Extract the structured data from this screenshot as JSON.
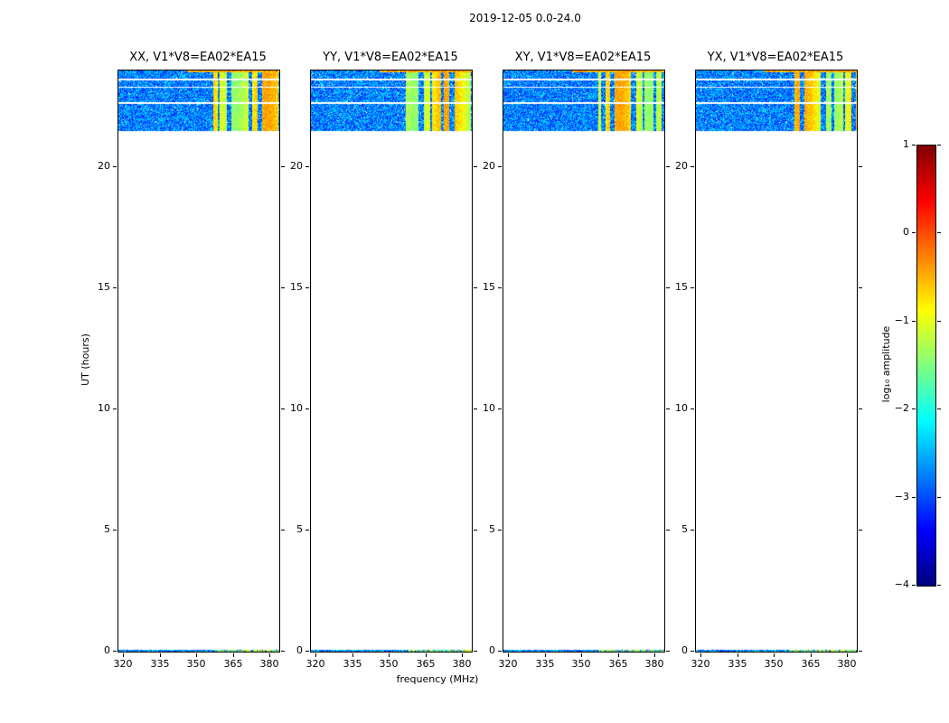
{
  "figure": {
    "title": "2019-12-05 0.0-24.0",
    "xlabel": "frequency (MHz)",
    "ylabel": "UT (hours)",
    "colorbar_label": "log₁₀ amplitude"
  },
  "colors": {
    "axes": "#000000",
    "background": "#ffffff"
  },
  "chart_data": {
    "type": "heatmap",
    "title": "2019-12-05 0.0-24.0",
    "xlabel": "frequency (MHz)",
    "ylabel": "UT (hours)",
    "colormap": "jet",
    "panels": [
      {
        "id": "xx",
        "title": "XX, V1*V8=EA02*EA15"
      },
      {
        "id": "yy",
        "title": "YY, V1*V8=EA02*EA15"
      },
      {
        "id": "xy",
        "title": "XY, V1*V8=EA02*EA15"
      },
      {
        "id": "yx",
        "title": "YX, V1*V8=EA02*EA15"
      }
    ],
    "x_range_mhz": [
      318,
      384
    ],
    "y_range_hours": [
      0,
      24
    ],
    "x_ticks": [
      320,
      335,
      350,
      365,
      380
    ],
    "y_ticks": [
      0,
      5,
      10,
      15,
      20
    ],
    "colorbar": {
      "label": "log₁₀ amplitude",
      "min": -4,
      "max": 1,
      "ticks": [
        {
          "value": 1,
          "label": "1"
        },
        {
          "value": 0,
          "label": "0"
        },
        {
          "value": -1,
          "label": "−1"
        },
        {
          "value": -2,
          "label": "−2"
        },
        {
          "value": -3,
          "label": "−3"
        },
        {
          "value": -4,
          "label": "−4"
        }
      ]
    },
    "top_edge": {
      "ut_range": [
        23.93,
        24.0
      ],
      "freq_range_mhz": [
        346,
        384
      ],
      "log_amp": [
        -0.9,
        0.0
      ]
    },
    "regions": [
      {
        "name": "observed-band",
        "ut_range": [
          21.5,
          24.0
        ],
        "background_log_amp": [
          -3.4,
          -2.1
        ],
        "rfi": {
          "freq_range_mhz": [
            357,
            384
          ],
          "log_amp": [
            -1.4,
            -0.25
          ],
          "pattern": "vertical-stripes"
        },
        "dropout_rows_ut": [
          [
            23.6,
            23.68
          ],
          [
            23.28,
            23.33
          ],
          [
            22.6,
            22.68
          ]
        ]
      },
      {
        "name": "bottom-strip",
        "ut_range": [
          0.0,
          0.09
        ],
        "background_log_amp": [
          -3.4,
          -2.0
        ],
        "rfi": {
          "freq_range_mhz": [
            357,
            384
          ],
          "log_amp": [
            -1.6,
            -0.6
          ],
          "pattern": "speckle"
        }
      }
    ]
  }
}
